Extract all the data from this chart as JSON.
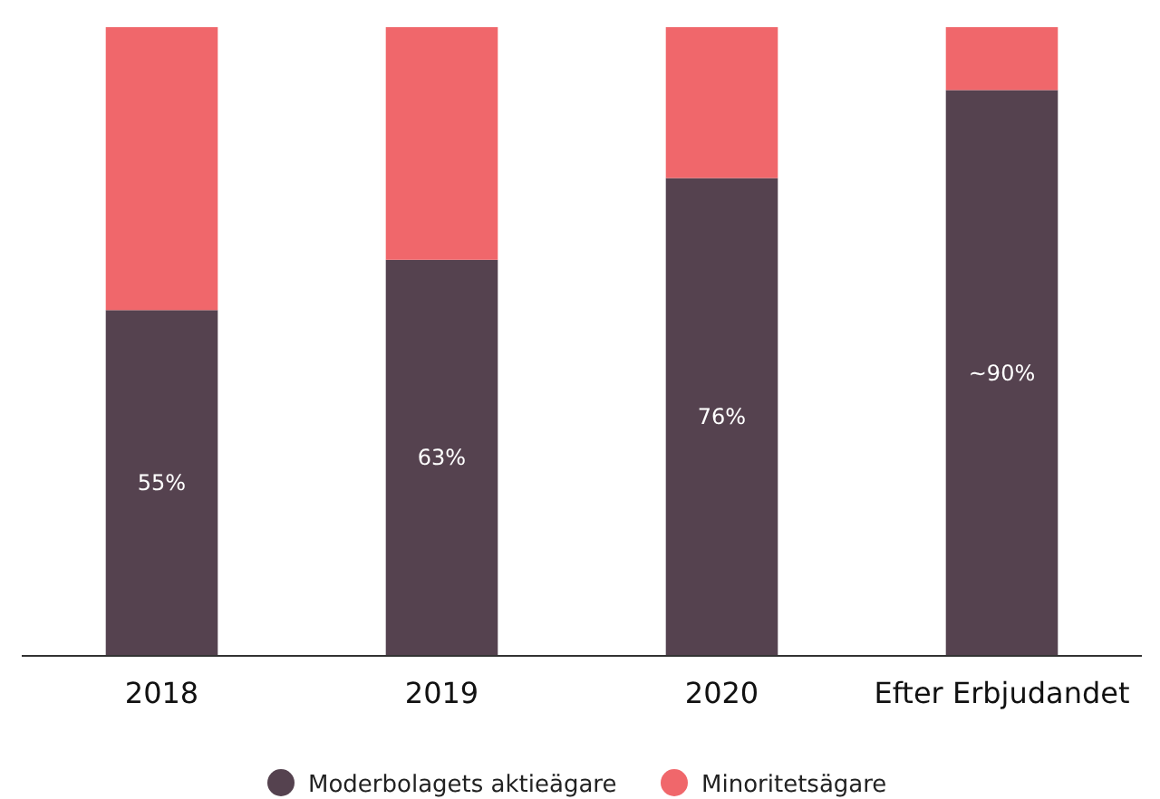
{
  "chart_data": {
    "type": "bar",
    "stacked": true,
    "categories": [
      "2018",
      "2019",
      "2020",
      "Efter Erbjudandet"
    ],
    "series": [
      {
        "name": "Moderbolagets aktieägare",
        "color": "#55424f",
        "values": [
          55,
          63,
          76,
          90
        ],
        "value_labels": [
          "55%",
          "63%",
          "76%",
          "~90%"
        ]
      },
      {
        "name": "Minoritetsägare",
        "color": "#f0676b",
        "values": [
          45,
          37,
          24,
          10
        ]
      }
    ],
    "legend": "bottom"
  }
}
